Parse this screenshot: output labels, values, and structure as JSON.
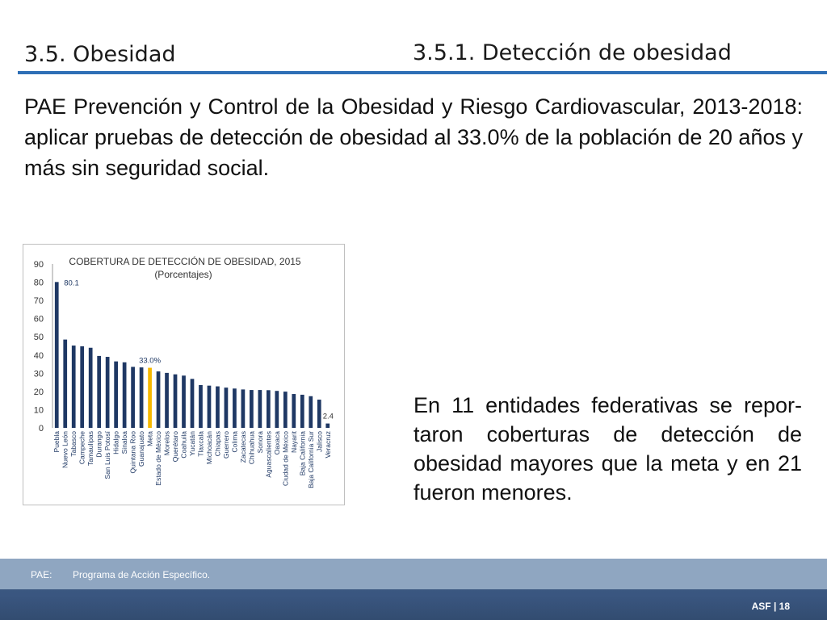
{
  "header": {
    "section": "3.5. Obesidad",
    "subsection": "3.5.1. Detección de obesidad"
  },
  "intro": "PAE Prevención y Control de la Obesidad y Riesgo Cardiovascular, 2013-2018: aplicar pruebas de detección de obesidad al 33.0% de la población de 20 años y más sin seguridad social.",
  "summary": "En 11 entidades federativas se repor-taron coberturas de detección de obesidad mayores que la meta y en 21 fueron menores.",
  "footer": {
    "abbr": "PAE:",
    "text": "Programa de Acción Específico.",
    "page": "ASF | 18"
  },
  "colors": {
    "bar": "#1f3864",
    "meta_bar": "#f5b800",
    "rule": "#2e6fb6"
  },
  "chart_data": {
    "type": "bar",
    "title": "COBERTURA DE DETECCIÓN DE OBESIDAD, 2015",
    "subtitle": "(Porcentajes)",
    "xlabel": "",
    "ylabel": "",
    "ylim": [
      0,
      90
    ],
    "yticks": [
      0,
      10,
      20,
      30,
      40,
      50,
      60,
      70,
      80,
      90
    ],
    "grid": false,
    "categories": [
      "Puebla",
      "Nuevo León",
      "Tabasco",
      "Campeche",
      "Tamaulipas",
      "Durango",
      "San Luis Potosí",
      "Hidalgo",
      "Sinaloa",
      "Quintana Roo",
      "Guanajuato",
      "Meta",
      "Estado de México",
      "Morelos",
      "Querétaro",
      "Coahuila",
      "Yucatán",
      "Tlaxcala",
      "Michoacán",
      "Chiapas",
      "Guerrero",
      "Colima",
      "Zacatecas",
      "Chihuahua",
      "Sonora",
      "Aguascalientes",
      "Oaxaca",
      "Ciudad de México",
      "Nayarit",
      "Baja California",
      "Baja California Sur",
      "Jalisco",
      "Veracruz"
    ],
    "values": [
      80.1,
      48.5,
      45.2,
      44.8,
      44.0,
      39.5,
      39.0,
      36.5,
      36.0,
      33.5,
      33.2,
      33.0,
      31.0,
      30.2,
      29.4,
      28.7,
      26.9,
      23.5,
      23.2,
      22.8,
      22.1,
      21.6,
      21.1,
      20.8,
      20.8,
      20.7,
      20.3,
      19.9,
      18.6,
      18.2,
      17.4,
      15.5,
      2.4
    ],
    "highlight_index": 11,
    "annotations": [
      "80.1",
      "33.0%",
      "2.4"
    ]
  }
}
